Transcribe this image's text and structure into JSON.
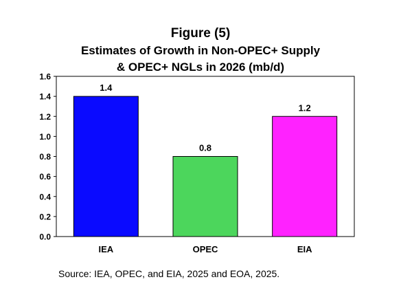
{
  "title_line_1": "Figure (5)",
  "title_line_2": "Estimates of Growth in Non-OPEC+ Supply",
  "title_line_3": "& OPEC+ NGLs in 2026 (mb/d)",
  "source": "Source: IEA, OPEC, and EIA, 2025 and EOA, 2025.",
  "chart_data": {
    "type": "bar",
    "title": "Figure (5) Estimates of Growth in Non-OPEC+ Supply & OPEC+ NGLs in 2026 (mb/d)",
    "categories": [
      "IEA",
      "OPEC",
      "EIA"
    ],
    "values": [
      1.4,
      0.8,
      1.2
    ],
    "data_labels": [
      "1.4",
      "0.8",
      "1.2"
    ],
    "colors": [
      "#0a0aff",
      "#4cd65c",
      "#ff22ff"
    ],
    "ylim": [
      0.0,
      1.6
    ],
    "yticks": [
      "0.0",
      "0.2",
      "0.4",
      "0.6",
      "0.8",
      "1.0",
      "1.2",
      "1.4",
      "1.6"
    ],
    "xlabel": "",
    "ylabel": "",
    "grid": false,
    "legend": "none"
  }
}
